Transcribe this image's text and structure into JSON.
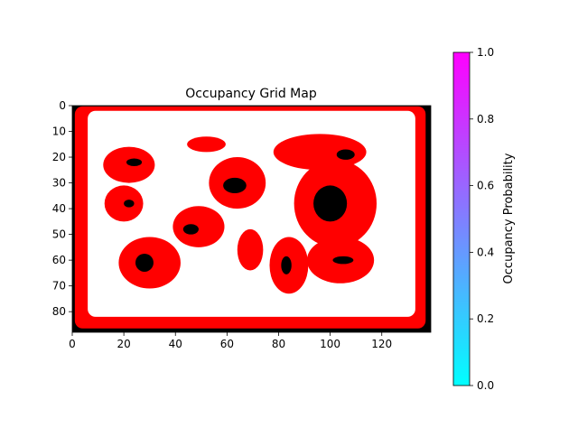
{
  "chart_data": {
    "type": "heatmap",
    "title": "Occupancy Grid Map",
    "grid_size": {
      "cols": 139,
      "rows": 88
    },
    "x_range": [
      0,
      139
    ],
    "y_range": [
      0,
      88
    ],
    "y_inverted": true,
    "x_ticks": [
      0,
      20,
      40,
      60,
      80,
      100,
      120
    ],
    "y_ticks": [
      0,
      10,
      20,
      30,
      40,
      50,
      60,
      70,
      80
    ],
    "grid": false,
    "legend": "none",
    "cell_classes": {
      "free": "#ffffff",
      "inflated": "#ff0000",
      "occupied": "#000000"
    },
    "boundary": {
      "outside_cells_color": "#000000",
      "border_band_inner_rect": {
        "x0": 6,
        "y0": 2,
        "x1": 133,
        "y1": 82
      }
    },
    "obstacles": [
      {
        "center": [
          22,
          23
        ],
        "size": [
          20,
          14
        ],
        "core": [
          24,
          22,
          6,
          3
        ]
      },
      {
        "center": [
          52,
          15
        ],
        "size": [
          15,
          6
        ],
        "core": null
      },
      {
        "center": [
          64,
          30
        ],
        "size": [
          22,
          20
        ],
        "core": [
          63,
          31,
          9,
          6
        ]
      },
      {
        "center": [
          20,
          38
        ],
        "size": [
          15,
          14
        ],
        "core": [
          22,
          38,
          4,
          3
        ]
      },
      {
        "center": [
          49,
          47
        ],
        "size": [
          20,
          16
        ],
        "core": [
          46,
          48,
          6,
          4
        ]
      },
      {
        "center": [
          30,
          61
        ],
        "size": [
          24,
          20
        ],
        "core": [
          28,
          61,
          7,
          7
        ]
      },
      {
        "center": [
          69,
          56
        ],
        "size": [
          10,
          16
        ],
        "core": null
      },
      {
        "center": [
          102,
          38
        ],
        "size": [
          32,
          34
        ],
        "core": [
          100,
          38,
          13,
          14
        ]
      },
      {
        "center": [
          96,
          18
        ],
        "size": [
          36,
          14
        ],
        "core": [
          106,
          19,
          7,
          4
        ]
      },
      {
        "center": [
          84,
          62
        ],
        "size": [
          15,
          22
        ],
        "core": [
          83,
          62,
          4,
          7
        ]
      },
      {
        "center": [
          104,
          60
        ],
        "size": [
          26,
          18
        ],
        "core": [
          105,
          60,
          8,
          3
        ]
      }
    ],
    "colorbar": {
      "label": "Occupancy Probability",
      "min": 0.0,
      "max": 1.0,
      "ticks": [
        "0.0",
        "0.2",
        "0.4",
        "0.6",
        "0.8",
        "1.0"
      ],
      "cmap_start": "#00ffff",
      "cmap_end": "#ff00ff"
    }
  }
}
